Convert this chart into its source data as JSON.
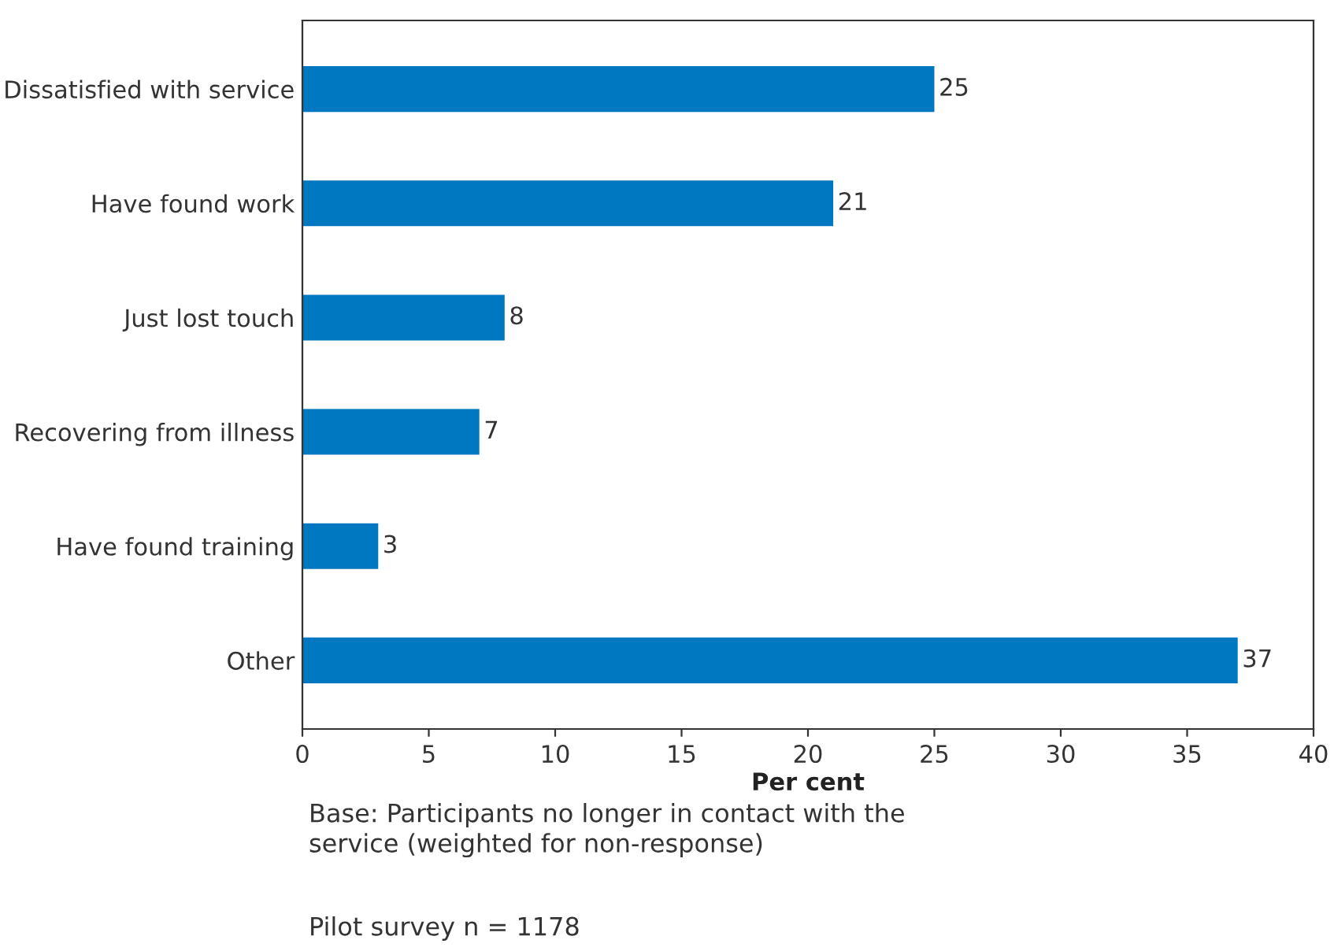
{
  "chart_data": {
    "type": "bar",
    "orientation": "horizontal",
    "xlabel": "Per cent",
    "categories": [
      "Dissatisfied with service",
      "Have found work",
      "Just lost touch",
      "Recovering from illness",
      "Have found training",
      "Other"
    ],
    "values": [
      25,
      21,
      8,
      7,
      3,
      37
    ],
    "color": "#0078c1",
    "xlim": [
      0,
      40
    ],
    "xticks": [
      0,
      5,
      10,
      15,
      20,
      25,
      30,
      35,
      40
    ],
    "grid": false,
    "legend": false,
    "data_labels": true,
    "annotations": [
      "Base: Participants no longer in contact with the\nservice (weighted for non-response)",
      "Pilot survey n = 1178"
    ]
  }
}
